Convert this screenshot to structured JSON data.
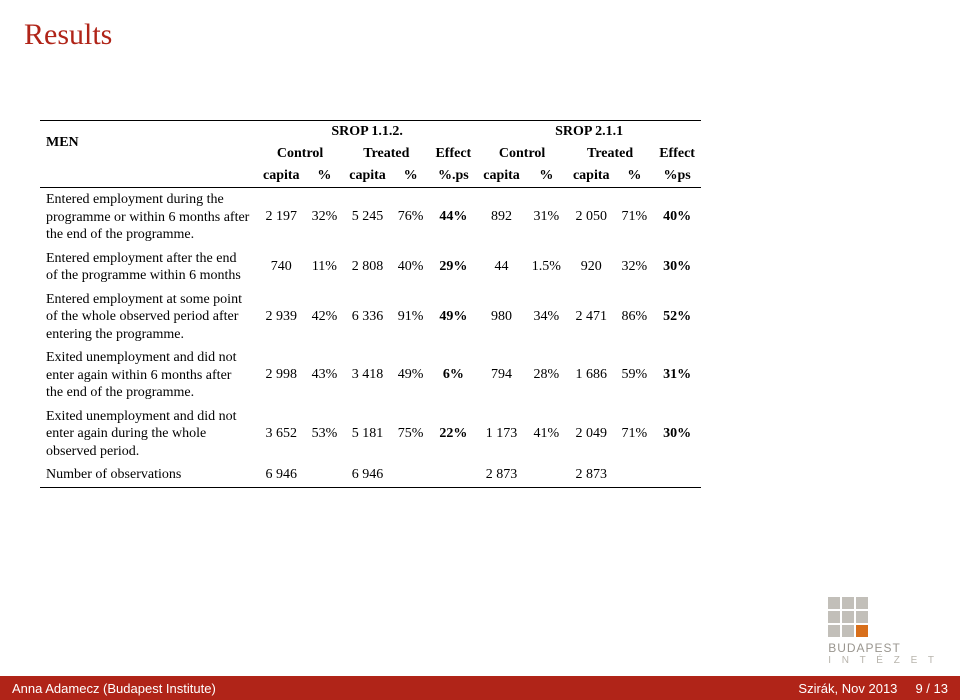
{
  "title": "Results",
  "footer": {
    "author": "Anna Adamecz (Budapest Institute)",
    "venue": "Szirák, Nov 2013",
    "page": "9 / 13"
  },
  "logo": {
    "line1": "BUDAPEST",
    "line2": "I N T É Z E T"
  },
  "table": {
    "men_label": "MEN",
    "super_headers": {
      "srop112": "SROP 1.1.2.",
      "srop211": "SROP 2.1.1"
    },
    "group_headers": [
      "Control",
      "Treated",
      "Effect",
      "Control",
      "Treated",
      "Effect"
    ],
    "col_units": [
      "capita",
      "%",
      "capita",
      "%",
      "%.ps",
      "capita",
      "%",
      "capita",
      "%",
      "%ps"
    ],
    "rows": [
      {
        "label": "Entered employment during the programme or within 6 months after the end of the programme.",
        "cells": [
          "2 197",
          "32%",
          "5 245",
          "76%",
          "44%",
          "892",
          "31%",
          "2 050",
          "71%",
          "40%"
        ]
      },
      {
        "label": "Entered employment after the end of the programme within 6 months",
        "cells": [
          "740",
          "11%",
          "2 808",
          "40%",
          "29%",
          "44",
          "1.5%",
          "920",
          "32%",
          "30%"
        ]
      },
      {
        "label": "Entered employment at some point of the whole observed period after entering the programme.",
        "cells": [
          "2 939",
          "42%",
          "6 336",
          "91%",
          "49%",
          "980",
          "34%",
          "2 471",
          "86%",
          "52%"
        ]
      },
      {
        "label": "Exited unemployment and did not enter again within 6 months after the end of the programme.",
        "cells": [
          "2 998",
          "43%",
          "3 418",
          "49%",
          "6%",
          "794",
          "28%",
          "1 686",
          "59%",
          "31%"
        ]
      },
      {
        "label": "Exited unemployment and did not enter again during the whole observed period.",
        "cells": [
          "3 652",
          "53%",
          "5 181",
          "75%",
          "22%",
          "1 173",
          "41%",
          "2 049",
          "71%",
          "30%"
        ]
      }
    ],
    "obs_label": "Number of observations",
    "obs_cells": [
      "6 946",
      "",
      "6 946",
      "",
      "",
      "2 873",
      "",
      "2 873",
      "",
      ""
    ]
  },
  "style": {
    "accent_color": "#b02418",
    "bold_cols": [
      4,
      9
    ]
  }
}
